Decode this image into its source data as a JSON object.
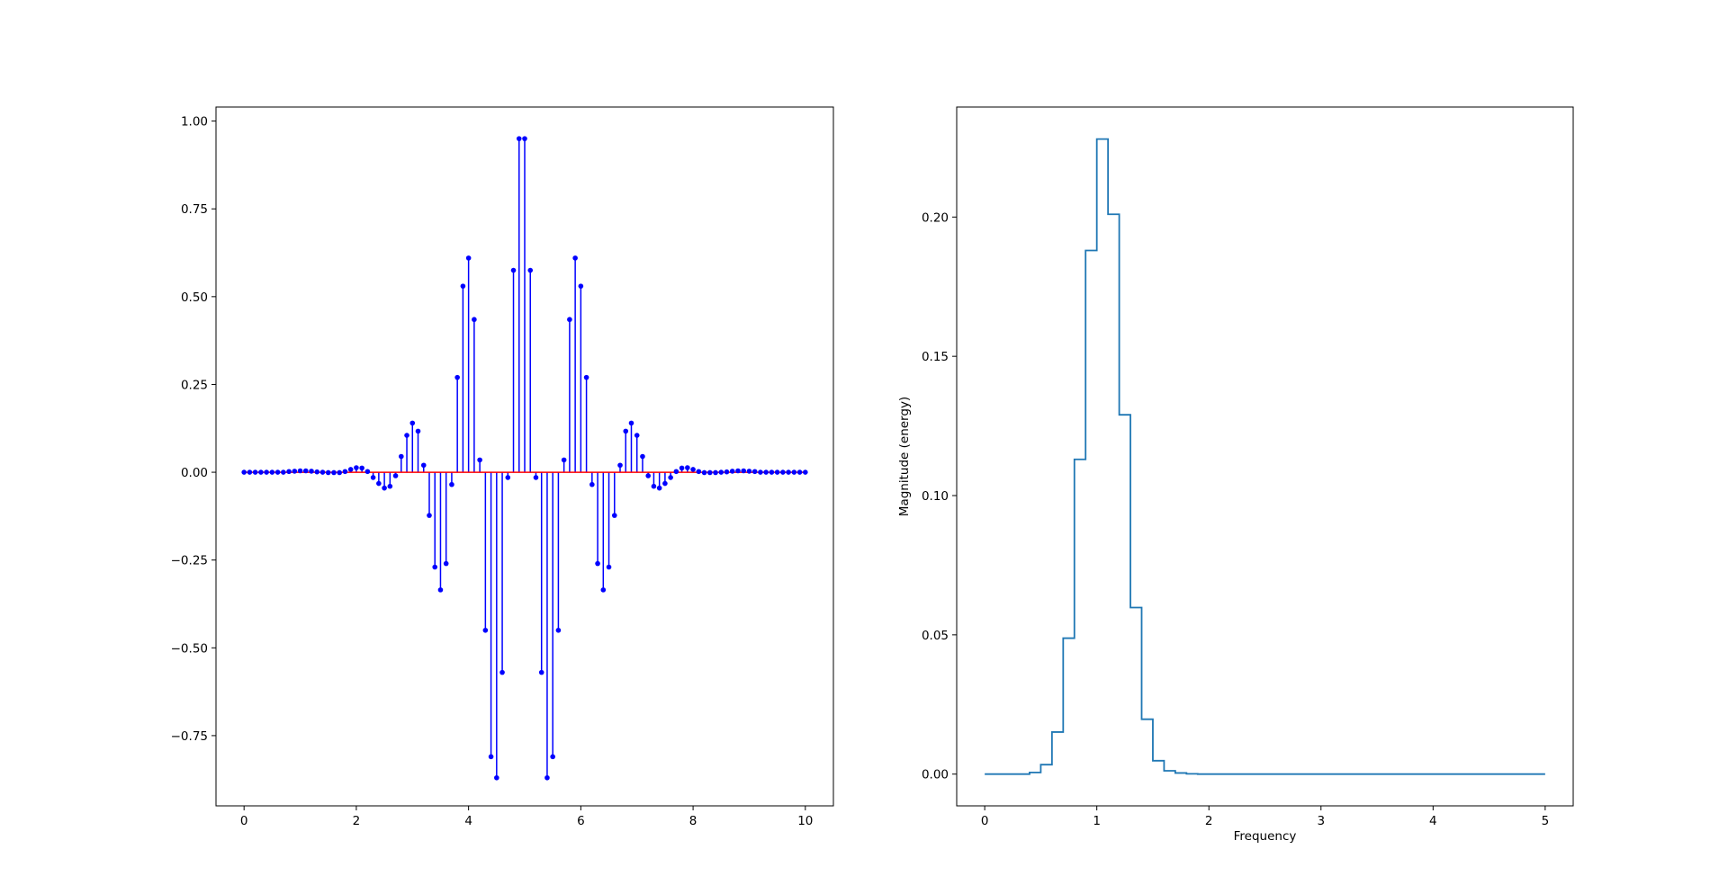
{
  "chart_data": [
    {
      "type": "stem",
      "title": "",
      "xlabel": "",
      "ylabel": "",
      "xlim": [
        -0.5,
        10.5
      ],
      "ylim": [
        -0.95,
        1.04
      ],
      "xticks": [
        0,
        2,
        4,
        6,
        8,
        10
      ],
      "xtick_labels": [
        "0",
        "2",
        "4",
        "6",
        "8",
        "10"
      ],
      "yticks": [
        -0.75,
        -0.5,
        -0.25,
        0.0,
        0.25,
        0.5,
        0.75,
        1.0
      ],
      "ytick_labels": [
        "−0.75",
        "−0.50",
        "−0.25",
        "0.00",
        "0.25",
        "0.50",
        "0.75",
        "1.00"
      ],
      "colors": {
        "stem": "#0000ff",
        "marker": "#0000ff",
        "baseline": "#ff0000"
      },
      "x": [
        0.0,
        0.1,
        0.2,
        0.3,
        0.4,
        0.5,
        0.6,
        0.7,
        0.8,
        0.9,
        1.0,
        1.1,
        1.2,
        1.3,
        1.4,
        1.5,
        1.6,
        1.7,
        1.8,
        1.9,
        2.0,
        2.1,
        2.2,
        2.3,
        2.4,
        2.5,
        2.6,
        2.7,
        2.8,
        2.9,
        3.0,
        3.1,
        3.2,
        3.3,
        3.4,
        3.5,
        3.6,
        3.7,
        3.8,
        3.9,
        4.0,
        4.1,
        4.2,
        4.3,
        4.4,
        4.5,
        4.6,
        4.7,
        4.8,
        4.9,
        5.0,
        5.1,
        5.2,
        5.3,
        5.4,
        5.5,
        5.6,
        5.7,
        5.8,
        5.9,
        6.0,
        6.1,
        6.2,
        6.3,
        6.4,
        6.5,
        6.6,
        6.7,
        6.8,
        6.9,
        7.0,
        7.1,
        7.2,
        7.3,
        7.4,
        7.5,
        7.6,
        7.7,
        7.8,
        7.9,
        8.0,
        8.1,
        8.2,
        8.3,
        8.4,
        8.5,
        8.6,
        8.7,
        8.8,
        8.9,
        9.0,
        9.1,
        9.2,
        9.3,
        9.4,
        9.5,
        9.6,
        9.7,
        9.8,
        9.9,
        10.0
      ],
      "y": [
        0.0,
        0.0,
        0.0,
        0.0,
        0.0,
        0.0,
        0.0,
        0.0,
        0.002,
        0.003,
        0.004,
        0.004,
        0.003,
        0.001,
        0.0,
        -0.001,
        -0.001,
        -0.001,
        0.002,
        0.008,
        0.013,
        0.012,
        0.002,
        -0.015,
        -0.032,
        -0.045,
        -0.04,
        -0.01,
        0.045,
        0.105,
        0.14,
        0.117,
        0.02,
        -0.123,
        -0.27,
        -0.335,
        -0.26,
        -0.035,
        0.27,
        0.53,
        0.61,
        0.435,
        0.035,
        -0.45,
        -0.81,
        -0.87,
        -0.57,
        -0.015,
        0.575,
        0.95,
        0.95,
        0.575,
        -0.015,
        -0.57,
        -0.87,
        -0.81,
        -0.45,
        0.035,
        0.435,
        0.61,
        0.53,
        0.27,
        -0.035,
        -0.26,
        -0.335,
        -0.27,
        -0.123,
        0.02,
        0.117,
        0.14,
        0.105,
        0.045,
        -0.01,
        -0.04,
        -0.045,
        -0.032,
        -0.015,
        0.002,
        0.012,
        0.013,
        0.008,
        0.002,
        -0.001,
        -0.001,
        -0.001,
        0.0,
        0.001,
        0.003,
        0.004,
        0.004,
        0.003,
        0.002,
        0.0,
        0.0,
        0.0,
        0.0,
        0.0,
        0.0,
        0.0,
        0.0,
        0.0
      ]
    },
    {
      "type": "step",
      "title": "",
      "xlabel": "Frequency",
      "ylabel": "Magnitude (energy)",
      "xlim": [
        -0.25,
        5.25
      ],
      "ylim": [
        -0.0114,
        0.2395
      ],
      "xticks": [
        0,
        1,
        2,
        3,
        4,
        5
      ],
      "xtick_labels": [
        "0",
        "1",
        "2",
        "3",
        "4",
        "5"
      ],
      "yticks": [
        0.0,
        0.05,
        0.1,
        0.15,
        0.2
      ],
      "ytick_labels": [
        "0.00",
        "0.05",
        "0.10",
        "0.15",
        "0.20"
      ],
      "colors": {
        "line": "#1f77b4"
      },
      "x": [
        0.0,
        0.1,
        0.2,
        0.3,
        0.4,
        0.5,
        0.6,
        0.7,
        0.8,
        0.9,
        1.0,
        1.1,
        1.2,
        1.3,
        1.4,
        1.5,
        1.6,
        1.7,
        1.8,
        1.9,
        2.0,
        2.1,
        2.2,
        2.3,
        2.4,
        2.5,
        2.6,
        2.7,
        2.8,
        2.9,
        3.0,
        3.1,
        3.2,
        3.3,
        3.4,
        3.5,
        3.6,
        3.7,
        3.8,
        3.9,
        4.0,
        4.1,
        4.2,
        4.3,
        4.4,
        4.5,
        4.6,
        4.7,
        4.8,
        4.9,
        5.0
      ],
      "y": [
        0.0,
        0.0,
        0.0,
        0.0,
        0.0006,
        0.0034,
        0.0151,
        0.0488,
        0.113,
        0.188,
        0.228,
        0.201,
        0.129,
        0.0598,
        0.0197,
        0.0048,
        0.0012,
        0.0004,
        0.0001,
        0.0,
        0.0,
        0.0,
        0.0,
        0.0,
        0.0,
        0.0,
        0.0,
        0.0,
        0.0,
        0.0,
        0.0,
        0.0,
        0.0,
        0.0,
        0.0,
        0.0,
        0.0,
        0.0,
        0.0,
        0.0,
        0.0,
        0.0,
        0.0,
        0.0,
        0.0,
        0.0,
        0.0,
        0.0,
        0.0,
        0.0,
        0.0
      ]
    }
  ]
}
